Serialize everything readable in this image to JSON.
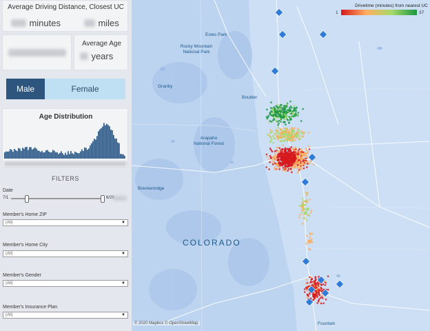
{
  "driving": {
    "title": "Average Driving Distance, Closest UC",
    "minutes_unit": "minutes",
    "miles_unit": "miles"
  },
  "age": {
    "title": "Average Age",
    "unit": "years"
  },
  "gender": {
    "male": "Male",
    "female": "Female"
  },
  "age_distribution": {
    "title": "Age Distribution"
  },
  "filters": {
    "title": "FILTERS",
    "date_label": "Date",
    "date_start": "7/1",
    "date_end": "6/29",
    "zip_label": "Member's Home ZIP",
    "zip_value": "(All)",
    "city_label": "Member's Home City",
    "city_value": "(All)",
    "gender_label": "Member's Gender",
    "gender_value": "(All)",
    "plan_label": "Member's Insurance Plan",
    "plan_value": "(All)"
  },
  "legend": {
    "title": "Drivetime (minutes) from nearest UC",
    "min": "1",
    "max": "37",
    "colors": [
      "#d7191c",
      "#fdae61",
      "#a6d96a",
      "#1a9641"
    ]
  },
  "map": {
    "labels": {
      "estes_park": "Estes Park",
      "rocky_mountain": "Rocky Mountain\nNational Park",
      "granby": "Granby",
      "boulder": "Boulder",
      "arapaho": "Arapaho\nNational Forest",
      "breckenridge": "Breckenridge",
      "colorado": "COLORADO",
      "fountain": "Fountain"
    },
    "attribution": "© 2020 Mapbox  © OpenStreetMap",
    "marker_color": "#2f7bd6"
  }
}
